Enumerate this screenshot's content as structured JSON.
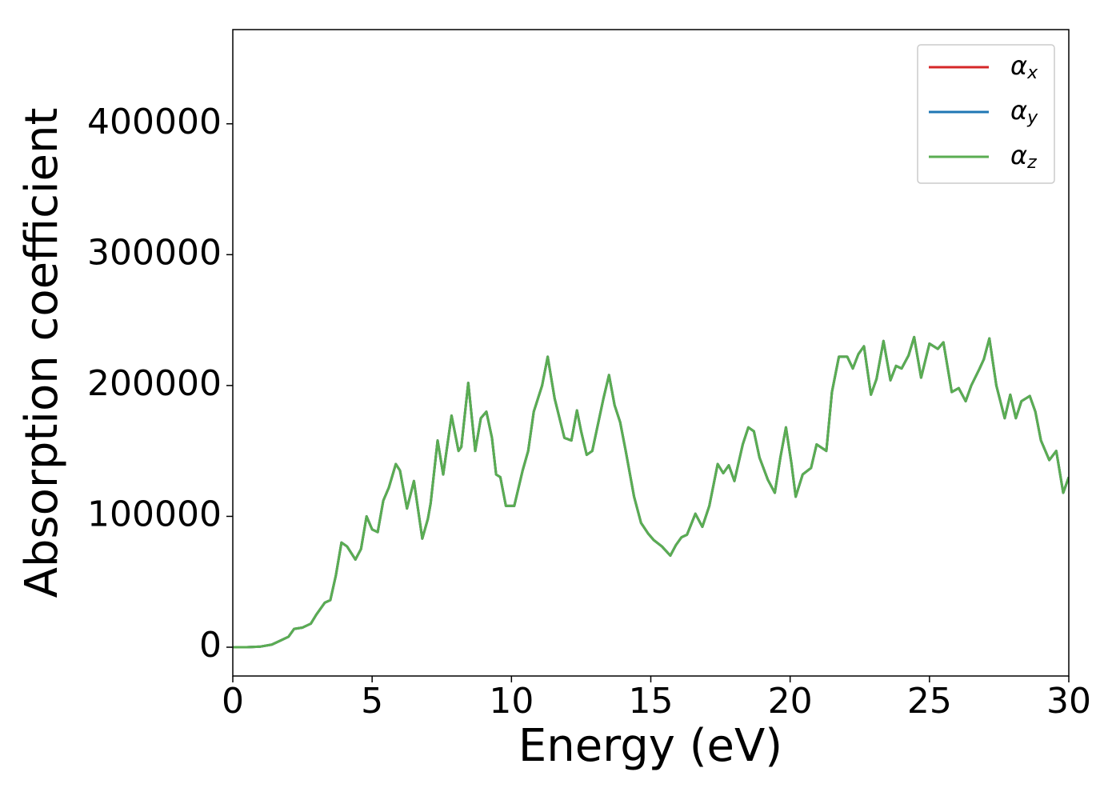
{
  "chart_data": {
    "type": "line",
    "xlabel": "Energy (eV)",
    "ylabel": "Absorption coefficient",
    "xlim": [
      0,
      30
    ],
    "xticks": [
      0,
      5,
      10,
      15,
      20,
      25,
      30
    ],
    "ylim": [
      -22000,
      472000
    ],
    "yticks": [
      0,
      100000,
      200000,
      300000,
      400000
    ],
    "legend": "upper right",
    "x": [
      0,
      0.5,
      1,
      1.4,
      1.7,
      2.0,
      2.2,
      2.5,
      2.8,
      3.0,
      3.3,
      3.5,
      3.7,
      3.9,
      4.1,
      4.4,
      4.6,
      4.8,
      5.0,
      5.2,
      5.4,
      5.6,
      5.85,
      6.0,
      6.25,
      6.5,
      6.8,
      7.0,
      7.1,
      7.35,
      7.55,
      7.85,
      8.1,
      8.2,
      8.45,
      8.7,
      8.9,
      9.1,
      9.3,
      9.45,
      9.6,
      9.8,
      10.1,
      10.4,
      10.6,
      10.8,
      11.1,
      11.3,
      11.55,
      11.9,
      12.15,
      12.35,
      12.5,
      12.7,
      12.9,
      13.1,
      13.3,
      13.5,
      13.7,
      13.9,
      14.1,
      14.4,
      14.65,
      14.9,
      15.1,
      15.4,
      15.7,
      15.9,
      16.1,
      16.3,
      16.6,
      16.85,
      17.1,
      17.4,
      17.6,
      17.8,
      18.0,
      18.3,
      18.5,
      18.7,
      18.9,
      19.2,
      19.45,
      19.65,
      19.85,
      20.05,
      20.2,
      20.45,
      20.75,
      20.95,
      21.3,
      21.5,
      21.75,
      22.05,
      22.25,
      22.45,
      22.65,
      22.9,
      23.1,
      23.35,
      23.6,
      23.8,
      24.0,
      24.25,
      24.45,
      24.7,
      25.0,
      25.3,
      25.5,
      25.8,
      26.05,
      26.3,
      26.5,
      26.8,
      26.95,
      27.15,
      27.4,
      27.7,
      27.9,
      28.1,
      28.3,
      28.6,
      28.8,
      29.0,
      29.3,
      29.55,
      29.8,
      30.0
    ],
    "series": [
      {
        "name": "αx",
        "color": "#d62728",
        "values": [
          0,
          0,
          500,
          2000,
          5000,
          8000,
          14000,
          15000,
          18000,
          25000,
          34000,
          36000,
          55000,
          80000,
          77000,
          67000,
          75000,
          100000,
          90000,
          88000,
          112000,
          122000,
          140000,
          135000,
          106000,
          127000,
          83000,
          98000,
          110000,
          158000,
          132000,
          177000,
          150000,
          153000,
          202000,
          150000,
          175000,
          180000,
          160000,
          132000,
          130000,
          108000,
          108000,
          135000,
          150000,
          180000,
          200000,
          222000,
          190000,
          160000,
          158000,
          181000,
          165000,
          147000,
          150000,
          170000,
          190000,
          208000,
          185000,
          172000,
          150000,
          115000,
          95000,
          87000,
          82000,
          77000,
          70000,
          78000,
          84000,
          86000,
          102000,
          92000,
          108000,
          140000,
          133000,
          139000,
          127000,
          155000,
          168000,
          165000,
          145000,
          128000,
          118000,
          145000,
          168000,
          140000,
          115000,
          132000,
          137000,
          155000,
          150000,
          195000,
          222000,
          222000,
          213000,
          224000,
          230000,
          193000,
          205000,
          234000,
          204000,
          215000,
          213000,
          223000,
          237000,
          206000,
          232000,
          228000,
          233000,
          195000,
          198000,
          188000,
          200000,
          213000,
          220000,
          236000,
          200000,
          175000,
          193000,
          175000,
          188000,
          192000,
          180000,
          158000,
          143000,
          150000,
          118000,
          130000
        ]
      },
      {
        "name": "αy",
        "color": "#1f77b4",
        "values": [
          0,
          0,
          500,
          2000,
          5000,
          8000,
          14000,
          15000,
          18000,
          25000,
          34000,
          36000,
          55000,
          80000,
          77000,
          67000,
          75000,
          100000,
          90000,
          88000,
          112000,
          122000,
          140000,
          135000,
          106000,
          127000,
          83000,
          98000,
          110000,
          158000,
          132000,
          177000,
          150000,
          153000,
          202000,
          150000,
          175000,
          180000,
          160000,
          132000,
          130000,
          108000,
          108000,
          135000,
          150000,
          180000,
          200000,
          222000,
          190000,
          160000,
          158000,
          181000,
          165000,
          147000,
          150000,
          170000,
          190000,
          208000,
          185000,
          172000,
          150000,
          115000,
          95000,
          87000,
          82000,
          77000,
          70000,
          78000,
          84000,
          86000,
          102000,
          92000,
          108000,
          140000,
          133000,
          139000,
          127000,
          155000,
          168000,
          165000,
          145000,
          128000,
          118000,
          145000,
          168000,
          140000,
          115000,
          132000,
          137000,
          155000,
          150000,
          195000,
          222000,
          222000,
          213000,
          224000,
          230000,
          193000,
          205000,
          234000,
          204000,
          215000,
          213000,
          223000,
          237000,
          206000,
          232000,
          228000,
          233000,
          195000,
          198000,
          188000,
          200000,
          213000,
          220000,
          236000,
          200000,
          175000,
          193000,
          175000,
          188000,
          192000,
          180000,
          158000,
          143000,
          150000,
          118000,
          130000
        ]
      },
      {
        "name": "αz",
        "color": "#5aad52",
        "values": [
          0,
          0,
          500,
          2000,
          5000,
          8000,
          14000,
          15000,
          18000,
          25000,
          34000,
          36000,
          55000,
          80000,
          77000,
          67000,
          75000,
          100000,
          90000,
          88000,
          112000,
          122000,
          140000,
          135000,
          106000,
          127000,
          83000,
          98000,
          110000,
          158000,
          132000,
          177000,
          150000,
          153000,
          202000,
          150000,
          175000,
          180000,
          160000,
          132000,
          130000,
          108000,
          108000,
          135000,
          150000,
          180000,
          200000,
          222000,
          190000,
          160000,
          158000,
          181000,
          165000,
          147000,
          150000,
          170000,
          190000,
          208000,
          185000,
          172000,
          150000,
          115000,
          95000,
          87000,
          82000,
          77000,
          70000,
          78000,
          84000,
          86000,
          102000,
          92000,
          108000,
          140000,
          133000,
          139000,
          127000,
          155000,
          168000,
          165000,
          145000,
          128000,
          118000,
          145000,
          168000,
          140000,
          115000,
          132000,
          137000,
          155000,
          150000,
          195000,
          222000,
          222000,
          213000,
          224000,
          230000,
          193000,
          205000,
          234000,
          204000,
          215000,
          213000,
          223000,
          237000,
          206000,
          232000,
          228000,
          233000,
          195000,
          198000,
          188000,
          200000,
          213000,
          220000,
          236000,
          200000,
          175000,
          193000,
          175000,
          188000,
          192000,
          180000,
          158000,
          143000,
          150000,
          118000,
          130000
        ]
      }
    ]
  }
}
